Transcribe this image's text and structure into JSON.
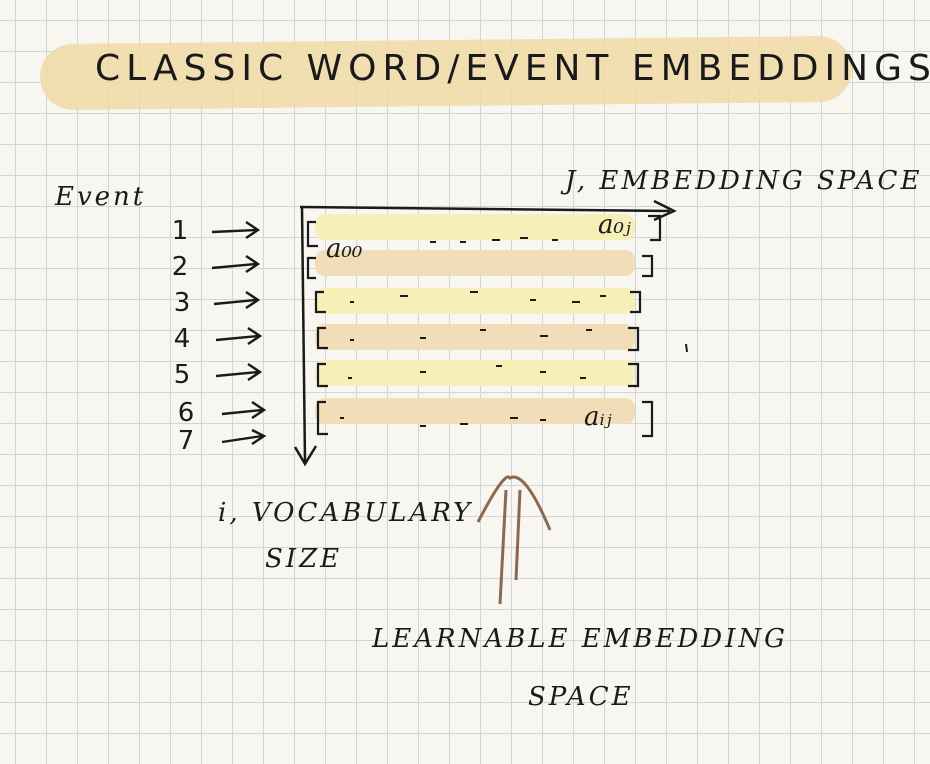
{
  "title": "CLASSIC WORD/EVENT EMBEDDINGS",
  "labels": {
    "event": "Event",
    "j_axis": "J, EMBEDDING SPACE",
    "i_axis_line1": "i, VOCABULARY",
    "i_axis_line2": "SIZE",
    "learnable_line1": "LEARNABLE EMBEDDING",
    "learnable_line2": "SPACE"
  },
  "matrix_cells": {
    "top_left": "a₀₀",
    "top_right": "a₀ⱼ",
    "bottom_right": "aᵢⱼ"
  },
  "row_indices": [
    "1",
    "2",
    "3",
    "4",
    "5",
    "6",
    "7"
  ],
  "colors": {
    "title_highlight": "#f0d9a6",
    "row_yellow": "#f6efb8",
    "row_orange": "#f1ddb8",
    "ink": "#1a1a1a",
    "arrow_brown": "#8a6a4f"
  }
}
